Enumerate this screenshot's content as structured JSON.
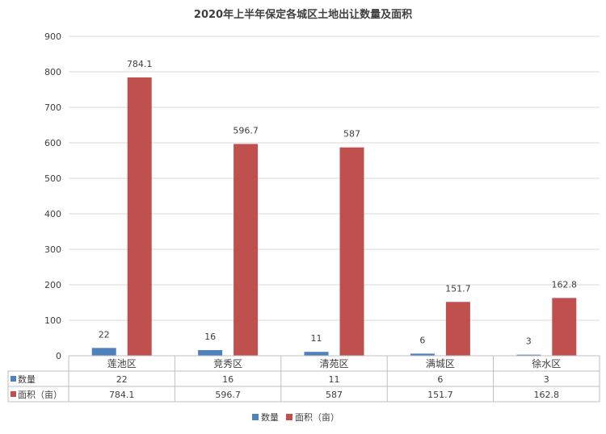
{
  "chart_data": {
    "type": "bar",
    "title": "2020年上半年保定各城区土地出让数量及面积",
    "categories": [
      "莲池区",
      "竞秀区",
      "清苑区",
      "满城区",
      "徐水区"
    ],
    "series": [
      {
        "name": "数量",
        "values": [
          22,
          16,
          11,
          6,
          3
        ],
        "labels": [
          "22",
          "16",
          "11",
          "6",
          "3"
        ],
        "color": "#4f81bd"
      },
      {
        "name": "面积（亩）",
        "values": [
          784.1,
          596.7,
          587,
          151.7,
          162.8
        ],
        "labels": [
          "784.1",
          "596.7",
          "587",
          "151.7",
          "162.8"
        ],
        "color": "#c0504d"
      }
    ],
    "ylim": [
      0,
      900
    ],
    "yticks": [
      0,
      100,
      200,
      300,
      400,
      500,
      600,
      700,
      800,
      900
    ],
    "ytick_labels": [
      "0",
      "100",
      "200",
      "300",
      "400",
      "500",
      "600",
      "700",
      "800",
      "900"
    ],
    "grid": true,
    "legend_position": "bottom",
    "data_table": true
  }
}
